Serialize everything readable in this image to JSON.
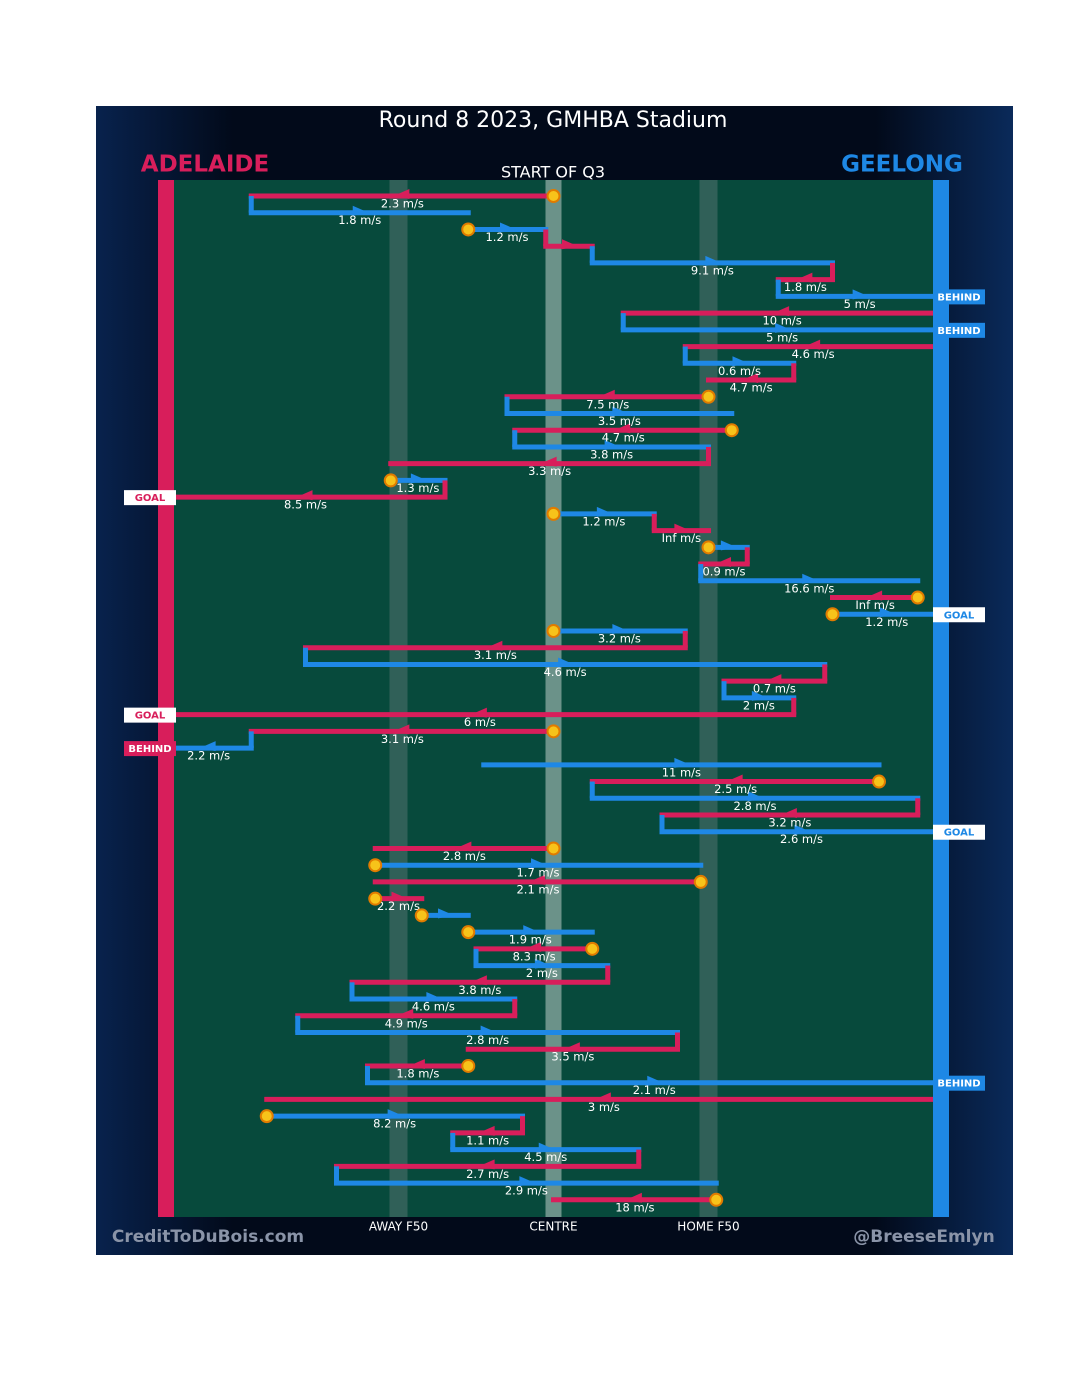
{
  "chart_data": {
    "type": "chain",
    "title": "Round 8 2023, GMHBA Stadium",
    "subtitle": "START OF Q3",
    "teams": [
      {
        "name": "ADELAIDE",
        "color": "#d81e5b"
      },
      {
        "name": "GEELONG",
        "color": "#1e88e5"
      }
    ],
    "xlim": [
      0,
      100
    ],
    "xticks": [
      {
        "value": 30,
        "label": "AWAY F50"
      },
      {
        "value": 50,
        "label": "CENTRE"
      },
      {
        "value": 70,
        "label": "HOME F50"
      }
    ],
    "footer_left": "CreditToDuBois.com",
    "footer_right": "@BreeseEmlyn",
    "rows": [
      {
        "team": "ADELAIDE",
        "from": 50,
        "to": 11,
        "label": "2.3 m/s",
        "stoppage": true
      },
      {
        "team": "GEELONG",
        "from": 11,
        "to": 39,
        "label": "1.8 m/s"
      },
      {
        "team": "GEELONG",
        "from": 39,
        "to": 49,
        "label": "1.2 m/s",
        "stoppage": true
      },
      {
        "team": "ADELAIDE",
        "from": 49,
        "to": 55
      },
      {
        "team": "GEELONG",
        "from": 55,
        "to": 86,
        "label": "9.1 m/s"
      },
      {
        "team": "ADELAIDE",
        "from": 86,
        "to": 79,
        "label": "1.8 m/s"
      },
      {
        "team": "GEELONG",
        "from": 79,
        "to": 100,
        "label": "5 m/s",
        "outcome": "BEHIND"
      },
      {
        "team": "ADELAIDE",
        "from": 100,
        "to": 59,
        "label": "10 m/s"
      },
      {
        "team": "GEELONG",
        "from": 59,
        "to": 100,
        "label": "5 m/s",
        "outcome": "BEHIND"
      },
      {
        "team": "ADELAIDE",
        "from": 100,
        "to": 67,
        "label": "4.6 m/s"
      },
      {
        "team": "GEELONG",
        "from": 67,
        "to": 81,
        "label": "0.6 m/s"
      },
      {
        "team": "ADELAIDE",
        "from": 81,
        "to": 70,
        "label": "4.7 m/s"
      },
      {
        "team": "ADELAIDE",
        "from": 70,
        "to": 44,
        "label": "7.5 m/s",
        "stoppage": true
      },
      {
        "team": "GEELONG",
        "from": 44,
        "to": 73,
        "label": "3.5 m/s"
      },
      {
        "team": "ADELAIDE",
        "from": 73,
        "to": 45,
        "label": "4.7 m/s",
        "stoppage": true
      },
      {
        "team": "GEELONG",
        "from": 45,
        "to": 70,
        "label": "3.8 m/s"
      },
      {
        "team": "ADELAIDE",
        "from": 70,
        "to": 29,
        "label": "3.3 m/s"
      },
      {
        "team": "GEELONG",
        "from": 29,
        "to": 36,
        "label": "1.3 m/s",
        "stoppage": true
      },
      {
        "team": "ADELAIDE",
        "from": 36,
        "to": 0,
        "label": "8.5 m/s",
        "outcome": "GOAL"
      },
      {
        "team": "GEELONG",
        "from": 50,
        "to": 63,
        "label": "1.2 m/s",
        "stoppage": true
      },
      {
        "team": "ADELAIDE",
        "from": 63,
        "to": 70,
        "label": "Inf m/s"
      },
      {
        "team": "GEELONG",
        "from": 70,
        "to": 75,
        "stoppage": true
      },
      {
        "team": "ADELAIDE",
        "from": 75,
        "to": 69,
        "label": "0.9 m/s"
      },
      {
        "team": "GEELONG",
        "from": 69,
        "to": 97,
        "label": "16.6 m/s"
      },
      {
        "team": "ADELAIDE",
        "from": 97,
        "to": 86,
        "label": "Inf m/s",
        "stoppage": true
      },
      {
        "team": "GEELONG",
        "from": 86,
        "to": 100,
        "label": "1.2 m/s",
        "stoppage": true,
        "outcome": "GOAL"
      },
      {
        "team": "GEELONG",
        "from": 50,
        "to": 67,
        "label": "3.2 m/s",
        "stoppage": true
      },
      {
        "team": "ADELAIDE",
        "from": 67,
        "to": 18,
        "label": "3.1 m/s"
      },
      {
        "team": "GEELONG",
        "from": 18,
        "to": 85,
        "label": "4.6 m/s"
      },
      {
        "team": "ADELAIDE",
        "from": 85,
        "to": 72,
        "label": "0.7 m/s"
      },
      {
        "team": "GEELONG",
        "from": 72,
        "to": 81,
        "label": "2 m/s"
      },
      {
        "team": "ADELAIDE",
        "from": 81,
        "to": 0,
        "label": "6 m/s",
        "outcome": "GOAL"
      },
      {
        "team": "ADELAIDE",
        "from": 50,
        "to": 11,
        "label": "3.1 m/s",
        "stoppage": true
      },
      {
        "team": "GEELONG",
        "from": 11,
        "to": 0,
        "label": "2.2 m/s",
        "outcome": "BEHIND"
      },
      {
        "team": "GEELONG",
        "from": 41,
        "to": 92,
        "label": "11 m/s"
      },
      {
        "team": "ADELAIDE",
        "from": 92,
        "to": 55,
        "label": "2.5 m/s",
        "stoppage": true
      },
      {
        "team": "GEELONG",
        "from": 55,
        "to": 97,
        "label": "2.8 m/s"
      },
      {
        "team": "ADELAIDE",
        "from": 97,
        "to": 64,
        "label": "3.2 m/s"
      },
      {
        "team": "GEELONG",
        "from": 64,
        "to": 100,
        "label": "2.6 m/s",
        "outcome": "GOAL"
      },
      {
        "team": "ADELAIDE",
        "from": 50,
        "to": 27,
        "label": "2.8 m/s",
        "stoppage": true
      },
      {
        "team": "GEELONG",
        "from": 27,
        "to": 69,
        "label": "1.7 m/s",
        "stoppage": true
      },
      {
        "team": "ADELAIDE",
        "from": 69,
        "to": 27,
        "label": "2.1 m/s",
        "stoppage": true
      },
      {
        "team": "ADELAIDE",
        "from": 27,
        "to": 33,
        "label": "2.2 m/s",
        "stoppage": true
      },
      {
        "team": "GEELONG",
        "from": 33,
        "to": 39,
        "stoppage": true
      },
      {
        "team": "GEELONG",
        "from": 39,
        "to": 55,
        "label": "1.9 m/s",
        "stoppage": true
      },
      {
        "team": "ADELAIDE",
        "from": 55,
        "to": 40,
        "label": "8.3 m/s",
        "stoppage": true
      },
      {
        "team": "GEELONG",
        "from": 40,
        "to": 57,
        "label": "2 m/s"
      },
      {
        "team": "ADELAIDE",
        "from": 57,
        "to": 24,
        "label": "3.8 m/s"
      },
      {
        "team": "GEELONG",
        "from": 24,
        "to": 45,
        "label": "4.6 m/s"
      },
      {
        "team": "ADELAIDE",
        "from": 45,
        "to": 17,
        "label": "4.9 m/s"
      },
      {
        "team": "GEELONG",
        "from": 17,
        "to": 66,
        "label": "2.8 m/s"
      },
      {
        "team": "ADELAIDE",
        "from": 66,
        "to": 39,
        "label": "3.5 m/s"
      },
      {
        "team": "ADELAIDE",
        "from": 39,
        "to": 26,
        "label": "1.8 m/s",
        "stoppage": true
      },
      {
        "team": "GEELONG",
        "from": 26,
        "to": 100,
        "label": "2.1 m/s",
        "outcome": "BEHIND"
      },
      {
        "team": "ADELAIDE",
        "from": 100,
        "to": 13,
        "label": "3 m/s"
      },
      {
        "team": "GEELONG",
        "from": 13,
        "to": 46,
        "label": "8.2 m/s",
        "stoppage": true
      },
      {
        "team": "ADELAIDE",
        "from": 46,
        "to": 37,
        "label": "1.1 m/s"
      },
      {
        "team": "GEELONG",
        "from": 37,
        "to": 61,
        "label": "4.5 m/s"
      },
      {
        "team": "ADELAIDE",
        "from": 61,
        "to": 22,
        "label": "2.7 m/s"
      },
      {
        "team": "GEELONG",
        "from": 22,
        "to": 71,
        "label": "2.9 m/s"
      },
      {
        "team": "ADELAIDE",
        "from": 71,
        "to": 50,
        "label": "18 m/s",
        "stoppage": true
      }
    ]
  }
}
